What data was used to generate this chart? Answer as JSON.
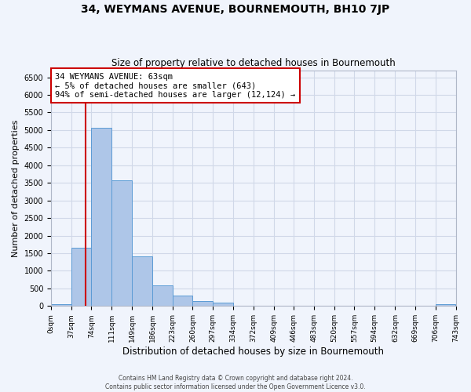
{
  "title": "34, WEYMANS AVENUE, BOURNEMOUTH, BH10 7JP",
  "subtitle": "Size of property relative to detached houses in Bournemouth",
  "xlabel": "Distribution of detached houses by size in Bournemouth",
  "ylabel": "Number of detached properties",
  "bin_edges": [
    0,
    37,
    74,
    111,
    149,
    186,
    223,
    260,
    297,
    334,
    372,
    409,
    446,
    483,
    520,
    557,
    594,
    632,
    669,
    706,
    743
  ],
  "bar_heights": [
    60,
    1650,
    5070,
    3580,
    1400,
    590,
    300,
    145,
    100,
    0,
    0,
    0,
    0,
    0,
    0,
    0,
    0,
    0,
    0,
    55
  ],
  "bar_color": "#aec6e8",
  "bar_edgecolor": "#5b9bd5",
  "property_line_x": 63,
  "property_line_color": "#cc0000",
  "annotation_text": "34 WEYMANS AVENUE: 63sqm\n← 5% of detached houses are smaller (643)\n94% of semi-detached houses are larger (12,124) →",
  "annotation_box_edgecolor": "#cc0000",
  "annotation_box_facecolor": "#ffffff",
  "ylim": [
    0,
    6700
  ],
  "yticks": [
    0,
    500,
    1000,
    1500,
    2000,
    2500,
    3000,
    3500,
    4000,
    4500,
    5000,
    5500,
    6000,
    6500
  ],
  "tick_labels": [
    "0sqm",
    "37sqm",
    "74sqm",
    "111sqm",
    "149sqm",
    "186sqm",
    "223sqm",
    "260sqm",
    "297sqm",
    "334sqm",
    "372sqm",
    "409sqm",
    "446sqm",
    "483sqm",
    "520sqm",
    "557sqm",
    "594sqm",
    "632sqm",
    "669sqm",
    "706sqm",
    "743sqm"
  ],
  "footer_line1": "Contains HM Land Registry data © Crown copyright and database right 2024.",
  "footer_line2": "Contains public sector information licensed under the Open Government Licence v3.0.",
  "grid_color": "#d0d8e8",
  "background_color": "#f0f4fc"
}
